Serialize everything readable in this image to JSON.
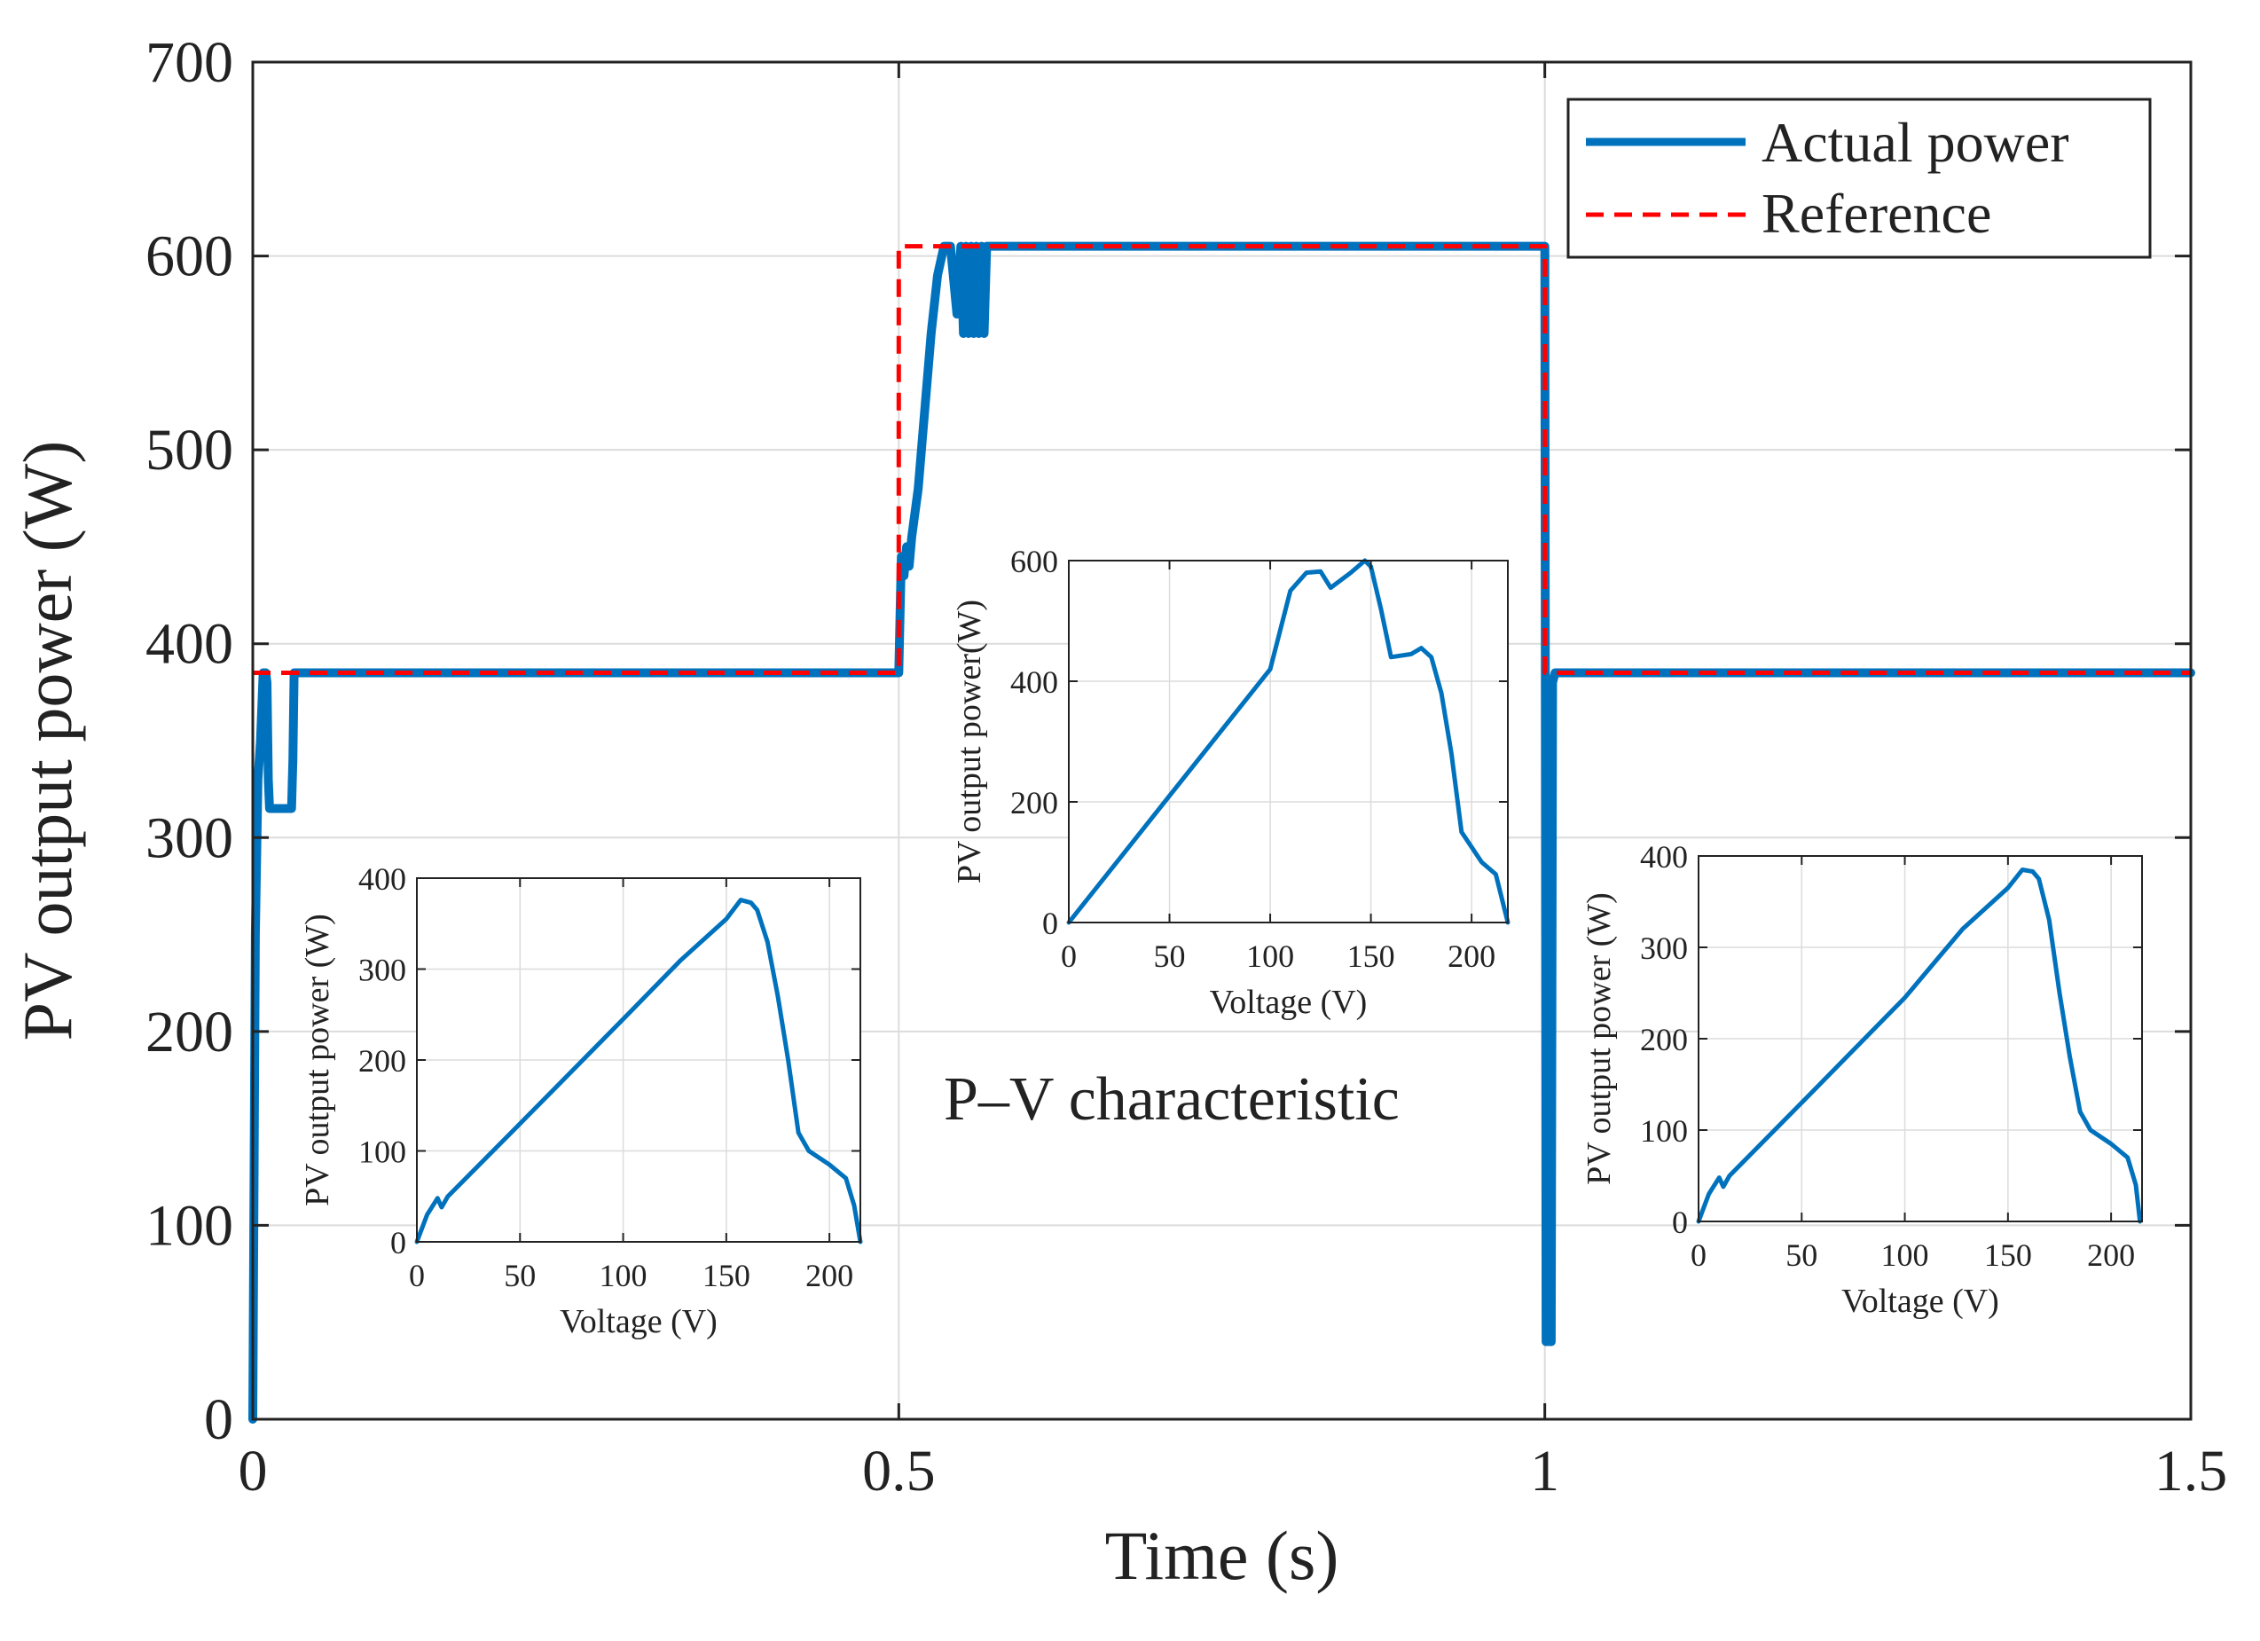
{
  "chart_data": [
    {
      "type": "line",
      "xlabel": "Time (s)",
      "ylabel": "PV output power (W)",
      "xlim": [
        0,
        1.5
      ],
      "ylim": [
        0,
        700
      ],
      "xticks": [
        0,
        0.5,
        1,
        1.5
      ],
      "xtick_labels": [
        "0",
        "0.5",
        "1",
        "1.5"
      ],
      "yticks": [
        0,
        100,
        200,
        300,
        400,
        500,
        600,
        700
      ],
      "ytick_labels": [
        "0",
        "100",
        "200",
        "300",
        "400",
        "500",
        "600",
        "700"
      ],
      "grid": true,
      "legend_position": "top-right",
      "annotation": "P–V characteristic",
      "series": [
        {
          "name": "Actual power",
          "color": "#0072BD",
          "style": "solid",
          "x": [
            0,
            0.002,
            0.004,
            0.006,
            0.008,
            0.01,
            0.011,
            0.012,
            0.013,
            0.014,
            0.016,
            0.02,
            0.025,
            0.03,
            0.031,
            0.032,
            0.033,
            0.034,
            0.036,
            0.04,
            0.1,
            0.2,
            0.3,
            0.4,
            0.499,
            0.5,
            0.502,
            0.504,
            0.506,
            0.508,
            0.51,
            0.515,
            0.52,
            0.525,
            0.53,
            0.535,
            0.54,
            0.545,
            0.548,
            0.55,
            0.552,
            0.554,
            0.556,
            0.558,
            0.56,
            0.562,
            0.564,
            0.566,
            0.568,
            0.57,
            0.572,
            0.574,
            0.576,
            0.578,
            0.58,
            0.6,
            0.7,
            0.8,
            0.9,
            0.999,
            1.0,
            1.001,
            1.002,
            1.003,
            1.004,
            1.005,
            1.006,
            1.008,
            1.01,
            1.015,
            1.02,
            1.05,
            1.1,
            1.2,
            1.3,
            1.4,
            1.5
          ],
          "y": [
            0,
            250,
            330,
            350,
            385,
            385,
            380,
            330,
            315,
            315,
            315,
            315,
            315,
            315,
            340,
            385,
            385,
            385,
            385,
            385,
            385,
            385,
            385,
            385,
            385,
            385,
            445,
            435,
            450,
            440,
            455,
            480,
            520,
            560,
            590,
            605,
            605,
            570,
            605,
            560,
            605,
            560,
            605,
            560,
            605,
            560,
            605,
            560,
            605,
            605,
            605,
            605,
            605,
            605,
            605,
            605,
            605,
            605,
            605,
            605,
            605,
            40,
            380,
            40,
            380,
            40,
            380,
            385,
            385,
            385,
            385,
            385,
            385,
            385,
            385,
            385,
            385
          ]
        },
        {
          "name": "Reference",
          "color": "#FF0000",
          "style": "dashed",
          "x": [
            0,
            0.5,
            0.5,
            1.0,
            1.0,
            1.5
          ],
          "y": [
            385,
            385,
            605,
            605,
            385,
            385
          ]
        }
      ]
    },
    {
      "type": "line",
      "xlabel": "Voltage (V)",
      "ylabel": "PV output power (W)",
      "xlim": [
        0,
        215
      ],
      "ylim": [
        0,
        400
      ],
      "xticks": [
        0,
        50,
        100,
        150,
        200
      ],
      "xtick_labels": [
        "0",
        "50",
        "100",
        "150",
        "200"
      ],
      "yticks": [
        0,
        100,
        200,
        300,
        400
      ],
      "ytick_labels": [
        "0",
        "100",
        "200",
        "300",
        "400"
      ],
      "grid": true,
      "series": [
        {
          "color": "#0072BD",
          "x": [
            0,
            5,
            10,
            12,
            15,
            50,
            100,
            128,
            150,
            157,
            162,
            165,
            170,
            175,
            180,
            185,
            190,
            200,
            208,
            212,
            215
          ],
          "y": [
            0,
            30,
            48,
            38,
            50,
            130,
            245,
            310,
            355,
            376,
            373,
            365,
            330,
            270,
            200,
            120,
            100,
            85,
            70,
            40,
            0
          ]
        }
      ]
    },
    {
      "type": "line",
      "xlabel": "Voltage (V)",
      "ylabel": "PV output power(W)",
      "xlim": [
        0,
        218
      ],
      "ylim": [
        0,
        600
      ],
      "xticks": [
        0,
        50,
        100,
        150,
        200
      ],
      "xtick_labels": [
        "0",
        "50",
        "100",
        "150",
        "200"
      ],
      "yticks": [
        0,
        200,
        400,
        600
      ],
      "ytick_labels": [
        "0",
        "200",
        "400",
        "600"
      ],
      "grid": true,
      "series": [
        {
          "color": "#0072BD",
          "x": [
            0,
            50,
            100,
            110,
            118,
            125,
            130,
            140,
            147,
            150,
            155,
            160,
            170,
            175,
            180,
            185,
            190,
            195,
            205,
            212,
            218
          ],
          "y": [
            0,
            210,
            420,
            550,
            580,
            582,
            555,
            580,
            600,
            590,
            520,
            440,
            445,
            455,
            440,
            380,
            280,
            150,
            100,
            80,
            0
          ]
        }
      ]
    },
    {
      "type": "line",
      "xlabel": "Voltage (V)",
      "ylabel": "PV output power (W)",
      "xlim": [
        0,
        215
      ],
      "ylim": [
        0,
        400
      ],
      "xticks": [
        0,
        50,
        100,
        150,
        200
      ],
      "xtick_labels": [
        "0",
        "50",
        "100",
        "150",
        "200"
      ],
      "yticks": [
        0,
        100,
        200,
        300,
        400
      ],
      "ytick_labels": [
        "0",
        "100",
        "200",
        "300",
        "400"
      ],
      "grid": true,
      "series": [
        {
          "color": "#0072BD",
          "x": [
            0,
            5,
            10,
            12,
            15,
            50,
            100,
            128,
            150,
            157,
            162,
            165,
            170,
            175,
            180,
            185,
            190,
            200,
            208,
            212,
            214
          ],
          "y": [
            0,
            30,
            48,
            38,
            50,
            130,
            245,
            320,
            365,
            385,
            383,
            375,
            330,
            250,
            180,
            120,
            100,
            85,
            70,
            40,
            0
          ]
        }
      ]
    }
  ]
}
